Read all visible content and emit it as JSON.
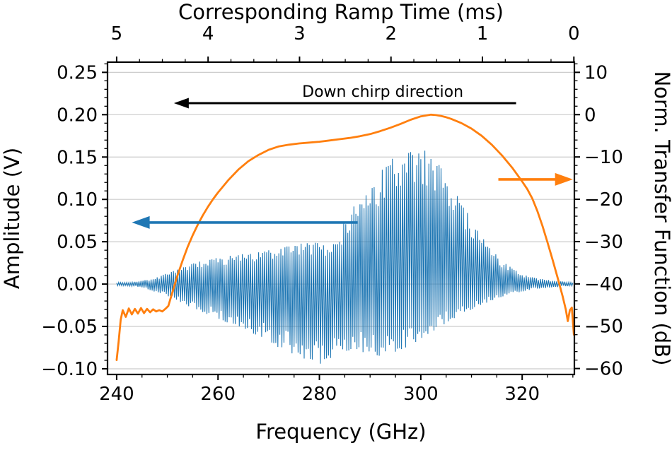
{
  "figure": {
    "background": "#ffffff"
  },
  "chart_data": {
    "type": "line",
    "description": "IF signal amplitude (blue, left axis) and normalized transfer function (orange, right axis) versus frequency; corresponding ramp time on top axis.",
    "axes": {
      "top": {
        "label": "Corresponding Ramp Time (ms)",
        "major_ticks_ms": [
          5,
          4,
          3,
          2,
          1,
          0
        ],
        "major_labels": [
          "5",
          "4",
          "3",
          "2",
          "1",
          "0"
        ],
        "t0_ghz": 330.2,
        "ghz_per_ms": -18.04,
        "minor_step_ms": 0.25
      },
      "bottom": {
        "label": "Frequency (GHz)",
        "lim": [
          238.2,
          330.3
        ],
        "major_ticks": [
          240,
          260,
          280,
          300,
          320
        ],
        "major_labels": [
          "240",
          "260",
          "280",
          "300",
          "320"
        ],
        "minor_step": 5
      },
      "left": {
        "label": "Amplitude (V)",
        "lim": [
          -0.1067,
          0.262
        ],
        "major_ticks": [
          0.25,
          0.2,
          0.15,
          0.1,
          0.05,
          0,
          -0.05,
          -0.1
        ],
        "major_labels": [
          "0.25",
          "0.20",
          "0.15",
          "0.10",
          "0.05",
          "0.00",
          "−0.05",
          "−0.10"
        ],
        "minor_step": 0.01
      },
      "right": {
        "label": "Norm. Transfer Function (dB)",
        "lim": [
          -61.4,
          12.4
        ],
        "major_ticks": [
          10,
          0,
          -10,
          -20,
          -30,
          -40,
          -50,
          -60
        ],
        "major_labels": [
          "10",
          "0",
          "−10",
          "−20",
          "−30",
          "−40",
          "−50",
          "−60"
        ],
        "minor_step": 2
      }
    },
    "grid": {
      "horizontal": true,
      "vertical": false,
      "color": "#cccccc"
    },
    "series": [
      {
        "name": "if-signal",
        "type": "oscillation",
        "axis": "left",
        "color": "#1f77b4",
        "x_range": [
          240,
          330
        ],
        "half_cycle_ghz": 0.2,
        "x": [
          240,
          242,
          244,
          246,
          248,
          250,
          252,
          254,
          256,
          258,
          260,
          262,
          264,
          266,
          268,
          270,
          272,
          274,
          276,
          278,
          280,
          282,
          284,
          284.5,
          285,
          286,
          288,
          290,
          292,
          294,
          296,
          298,
          300,
          301,
          302,
          303,
          304,
          305,
          306,
          307,
          308,
          309,
          310,
          311,
          312,
          313,
          314,
          315,
          316,
          317,
          318,
          319,
          320,
          322,
          324,
          326,
          328,
          330
        ],
        "envelope_upper": [
          0.002,
          0.002,
          0.003,
          0.005,
          0.008,
          0.013,
          0.018,
          0.022,
          0.026,
          0.029,
          0.031,
          0.033,
          0.035,
          0.036,
          0.038,
          0.04,
          0.042,
          0.045,
          0.048,
          0.05,
          0.048,
          0.046,
          0.05,
          0.065,
          0.08,
          0.088,
          0.098,
          0.112,
          0.132,
          0.147,
          0.152,
          0.156,
          0.16,
          0.157,
          0.152,
          0.146,
          0.137,
          0.127,
          0.116,
          0.106,
          0.096,
          0.086,
          0.076,
          0.066,
          0.057,
          0.049,
          0.041,
          0.034,
          0.028,
          0.023,
          0.019,
          0.015,
          0.012,
          0.008,
          0.006,
          0.004,
          0.003,
          0.002
        ],
        "envelope_lower": [
          -0.002,
          -0.002,
          -0.003,
          -0.006,
          -0.01,
          -0.014,
          -0.019,
          -0.026,
          -0.031,
          -0.036,
          -0.041,
          -0.046,
          -0.051,
          -0.056,
          -0.061,
          -0.068,
          -0.075,
          -0.08,
          -0.086,
          -0.091,
          -0.095,
          -0.088,
          -0.082,
          -0.081,
          -0.08,
          -0.078,
          -0.08,
          -0.082,
          -0.085,
          -0.082,
          -0.078,
          -0.072,
          -0.066,
          -0.062,
          -0.058,
          -0.054,
          -0.05,
          -0.046,
          -0.042,
          -0.039,
          -0.036,
          -0.033,
          -0.03,
          -0.027,
          -0.025,
          -0.022,
          -0.02,
          -0.017,
          -0.015,
          -0.013,
          -0.011,
          -0.01,
          -0.009,
          -0.006,
          -0.005,
          -0.004,
          -0.003,
          -0.002
        ]
      },
      {
        "name": "transfer-function",
        "type": "line",
        "axis": "right",
        "color": "#ff7f0e",
        "x": [
          240.0,
          240.4,
          240.8,
          241.2,
          241.8,
          242.4,
          243.0,
          243.6,
          244.2,
          244.8,
          245.4,
          246.0,
          246.6,
          247.2,
          247.8,
          248.4,
          249.0,
          249.6,
          250.2,
          251,
          252,
          253,
          254,
          255,
          256,
          257,
          258,
          259,
          260,
          262,
          264,
          266,
          268,
          270,
          272,
          274,
          276,
          278,
          280,
          282,
          284,
          286,
          288,
          290,
          292,
          294,
          296,
          298,
          300,
          301,
          302,
          303,
          304,
          305,
          306,
          308,
          310,
          312,
          314,
          316,
          318,
          320,
          321,
          322,
          323,
          324,
          325,
          326,
          327,
          328,
          328.6,
          329.0,
          329.4,
          329.8,
          330.2
        ],
        "y_db": [
          -58,
          -53.5,
          -48.5,
          -46.2,
          -47.8,
          -45.8,
          -47.2,
          -45.9,
          -47.0,
          -45.7,
          -46.9,
          -45.9,
          -46.7,
          -46.0,
          -46.5,
          -46.2,
          -46.5,
          -45.9,
          -45.2,
          -42.0,
          -38.0,
          -34.5,
          -31.3,
          -28.5,
          -26.0,
          -23.8,
          -21.8,
          -20.0,
          -18.4,
          -15.5,
          -13.0,
          -11.0,
          -9.5,
          -8.3,
          -7.5,
          -7.1,
          -6.8,
          -6.6,
          -6.4,
          -6.1,
          -5.8,
          -5.5,
          -5.1,
          -4.6,
          -3.9,
          -3.1,
          -2.2,
          -1.2,
          -0.4,
          -0.2,
          0.0,
          -0.1,
          -0.3,
          -0.6,
          -1.0,
          -2.0,
          -3.3,
          -5.0,
          -7.1,
          -9.6,
          -12.5,
          -15.8,
          -17.6,
          -19.8,
          -22.8,
          -26.3,
          -30.2,
          -34.3,
          -38.6,
          -43.0,
          -46.0,
          -48.8,
          -46.2,
          -45.6,
          -52.0
        ]
      }
    ],
    "annotations": {
      "label": {
        "text": "Down chirp direction",
        "x_ghz": 292.5,
        "y_v": 0.221,
        "color": "#000000"
      },
      "arrows": [
        {
          "name": "down-chirp-arrow",
          "direction": "left",
          "color": "#000000",
          "y_v": 0.2136,
          "x_from_ghz": 318.8,
          "x_to_ghz": 251.3,
          "width": 3
        },
        {
          "name": "amplitude-axis-arrow",
          "direction": "left",
          "color": "#1f77b4",
          "y_v": 0.0727,
          "x_from_ghz": 287.5,
          "x_to_ghz": 243.0,
          "width": 3.6
        },
        {
          "name": "transfer-axis-arrow",
          "direction": "right",
          "color": "#ff7f0e",
          "y_db": -15.3,
          "x_from_ghz": 315.3,
          "x_to_ghz": 330.0,
          "width": 3.6
        }
      ]
    }
  }
}
